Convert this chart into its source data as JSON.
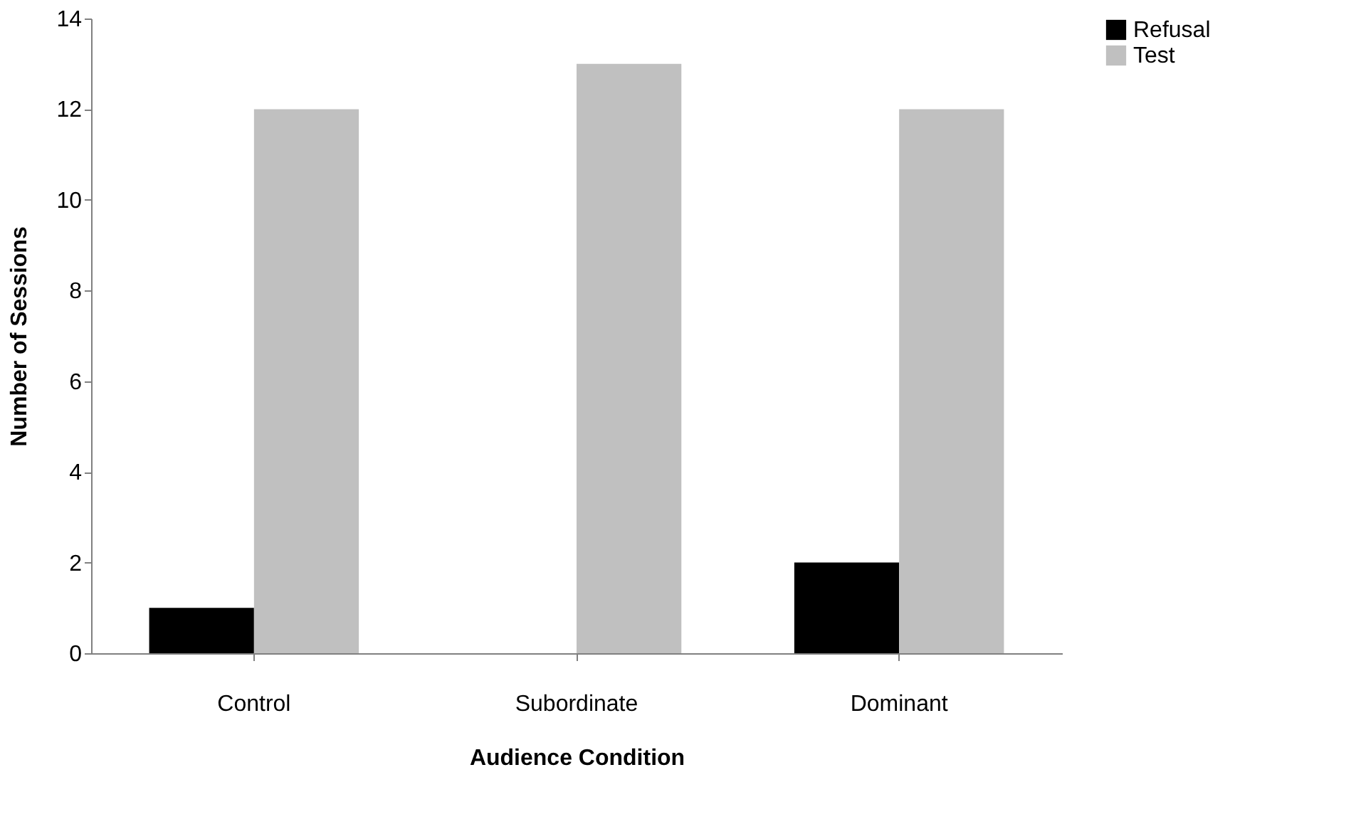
{
  "chart_data": {
    "type": "bar",
    "xlabel": "Audience Condition",
    "ylabel": "Number of Sessions",
    "categories": [
      "Control",
      "Subordinate",
      "Dominant"
    ],
    "series": [
      {
        "name": "Refusal",
        "color": "#000000",
        "values": [
          1,
          0,
          2
        ]
      },
      {
        "name": "Test",
        "color": "#c0c0c0",
        "values": [
          12,
          13,
          12
        ]
      }
    ],
    "ylim": [
      0,
      14
    ],
    "yticks": [
      0,
      2,
      4,
      6,
      8,
      10,
      12,
      14
    ],
    "grid": false,
    "legend": "right"
  }
}
